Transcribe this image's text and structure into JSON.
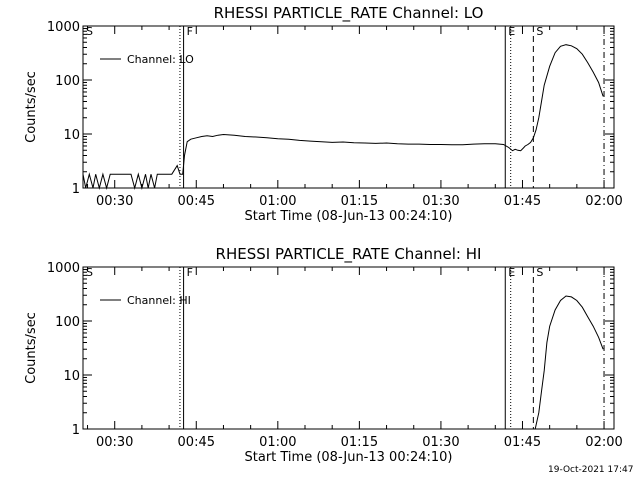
{
  "chart_data": [
    {
      "type": "line",
      "title": "RHESSI PARTICLE_RATE Channel: LO",
      "xlabel": "Start Time (08-Jun-13 00:24:10)",
      "ylabel": "Counts/sec",
      "y_scale": "log",
      "ylim": [
        1,
        1000
      ],
      "xlim": [
        "00:24:10",
        "02:01:50"
      ],
      "x_tick_labels": [
        "00:30",
        "00:45",
        "01:00",
        "01:15",
        "01:30",
        "01:45",
        "02:00"
      ],
      "y_tick_labels": [
        "1",
        "10",
        "100",
        "1000"
      ],
      "legend": {
        "position": "top-left",
        "entries": [
          "Channel: LO"
        ]
      },
      "markers": [
        {
          "label": "S",
          "time": "00:24:10",
          "style": "solid"
        },
        {
          "label": "F",
          "time": "00:42:40",
          "style": "solid"
        },
        {
          "label": "",
          "time": "00:42:00",
          "style": "dotted"
        },
        {
          "label": "E",
          "time": "01:41:50",
          "style": "solid"
        },
        {
          "label": "",
          "time": "01:42:50",
          "style": "dotted"
        },
        {
          "label": "S",
          "time": "01:47:00",
          "style": "dashed"
        },
        {
          "label": "",
          "time": "02:00:00",
          "style": "dash-dot"
        }
      ],
      "series": [
        {
          "name": "Channel: LO",
          "x": [
            "00:24:10",
            "00:24:40",
            "00:25:20",
            "00:26:00",
            "00:26:30",
            "00:27:10",
            "00:27:50",
            "00:28:30",
            "00:29:10",
            "00:30:00",
            "00:31:00",
            "00:32:00",
            "00:33:00",
            "00:33:40",
            "00:34:20",
            "00:35:00",
            "00:35:40",
            "00:36:10",
            "00:36:40",
            "00:37:20",
            "00:37:50",
            "00:38:30",
            "00:39:30",
            "00:40:30",
            "00:41:30",
            "00:42:00",
            "00:42:30",
            "00:42:50",
            "00:43:20",
            "00:44:00",
            "00:45:00",
            "00:46:00",
            "00:47:00",
            "00:48:00",
            "00:49:00",
            "00:50:00",
            "00:52:00",
            "00:54:00",
            "00:56:00",
            "00:58:00",
            "01:00:00",
            "01:02:00",
            "01:04:00",
            "01:06:00",
            "01:08:00",
            "01:10:00",
            "01:12:00",
            "01:14:00",
            "01:16:00",
            "01:18:00",
            "01:20:00",
            "01:22:00",
            "01:24:00",
            "01:26:00",
            "01:28:00",
            "01:30:00",
            "01:32:00",
            "01:34:00",
            "01:36:00",
            "01:38:00",
            "01:40:00",
            "01:41:30",
            "01:42:30",
            "01:43:10",
            "01:43:40",
            "01:44:10",
            "01:44:40",
            "01:45:10",
            "01:45:30",
            "01:46:00",
            "01:46:30",
            "01:47:00",
            "01:47:30",
            "01:48:00",
            "01:48:30",
            "01:49:00",
            "01:50:00",
            "01:51:00",
            "01:52:00",
            "01:53:00",
            "01:54:00",
            "01:55:00",
            "01:56:00",
            "01:57:00",
            "01:58:00",
            "01:59:00",
            "01:59:50"
          ],
          "y": [
            1.8,
            1.0,
            1.8,
            1.0,
            1.8,
            1.0,
            1.8,
            1.0,
            1.8,
            1.8,
            1.8,
            1.8,
            1.8,
            1.0,
            1.8,
            1.0,
            1.8,
            1.0,
            1.8,
            1.0,
            1.8,
            1.8,
            1.8,
            1.8,
            2.6,
            1.8,
            1.8,
            4.0,
            7.2,
            8.0,
            8.5,
            9.0,
            9.3,
            9.0,
            9.5,
            9.8,
            9.5,
            9.0,
            8.8,
            8.5,
            8.2,
            8.0,
            7.6,
            7.4,
            7.2,
            7.0,
            7.1,
            6.9,
            6.8,
            6.7,
            6.8,
            6.6,
            6.5,
            6.5,
            6.4,
            6.4,
            6.3,
            6.3,
            6.5,
            6.6,
            6.6,
            6.4,
            5.6,
            4.9,
            5.2,
            5.0,
            4.9,
            5.5,
            6.0,
            6.4,
            7.0,
            8.5,
            12.0,
            20.0,
            40.0,
            80.0,
            180.0,
            320.0,
            420.0,
            450.0,
            430.0,
            380.0,
            300.0,
            210.0,
            140.0,
            90.0,
            50.0
          ]
        }
      ]
    },
    {
      "type": "line",
      "title": "RHESSI PARTICLE_RATE Channel: HI",
      "xlabel": "Start Time (08-Jun-13 00:24:10)",
      "ylabel": "Counts/sec",
      "y_scale": "log",
      "ylim": [
        1,
        1000
      ],
      "xlim": [
        "00:24:10",
        "02:01:50"
      ],
      "x_tick_labels": [
        "00:30",
        "00:45",
        "01:00",
        "01:15",
        "01:30",
        "01:45",
        "02:00"
      ],
      "y_tick_labels": [
        "1",
        "10",
        "100",
        "1000"
      ],
      "legend": {
        "position": "top-left",
        "entries": [
          "Channel: HI"
        ]
      },
      "markers": [
        {
          "label": "S",
          "time": "00:24:10",
          "style": "solid"
        },
        {
          "label": "F",
          "time": "00:42:40",
          "style": "solid"
        },
        {
          "label": "",
          "time": "00:42:00",
          "style": "dotted"
        },
        {
          "label": "E",
          "time": "01:41:50",
          "style": "solid"
        },
        {
          "label": "",
          "time": "01:42:50",
          "style": "dotted"
        },
        {
          "label": "S",
          "time": "01:47:00",
          "style": "dashed"
        },
        {
          "label": "",
          "time": "02:00:00",
          "style": "dash-dot"
        }
      ],
      "series": [
        {
          "name": "Channel: HI",
          "x": [
            "01:47:20",
            "01:48:00",
            "01:48:30",
            "01:49:00",
            "01:49:30",
            "01:50:00",
            "01:51:00",
            "01:52:00",
            "01:53:00",
            "01:54:00",
            "01:55:00",
            "01:56:00",
            "01:57:00",
            "01:58:00",
            "01:59:00",
            "01:59:50"
          ],
          "y": [
            1.0,
            2.0,
            5.0,
            12.0,
            40.0,
            80.0,
            160.0,
            240.0,
            290.0,
            280.0,
            240.0,
            180.0,
            120.0,
            80.0,
            50.0,
            30.0
          ]
        }
      ]
    }
  ],
  "footer": {
    "timestamp": "19-Oct-2021 17:47"
  }
}
